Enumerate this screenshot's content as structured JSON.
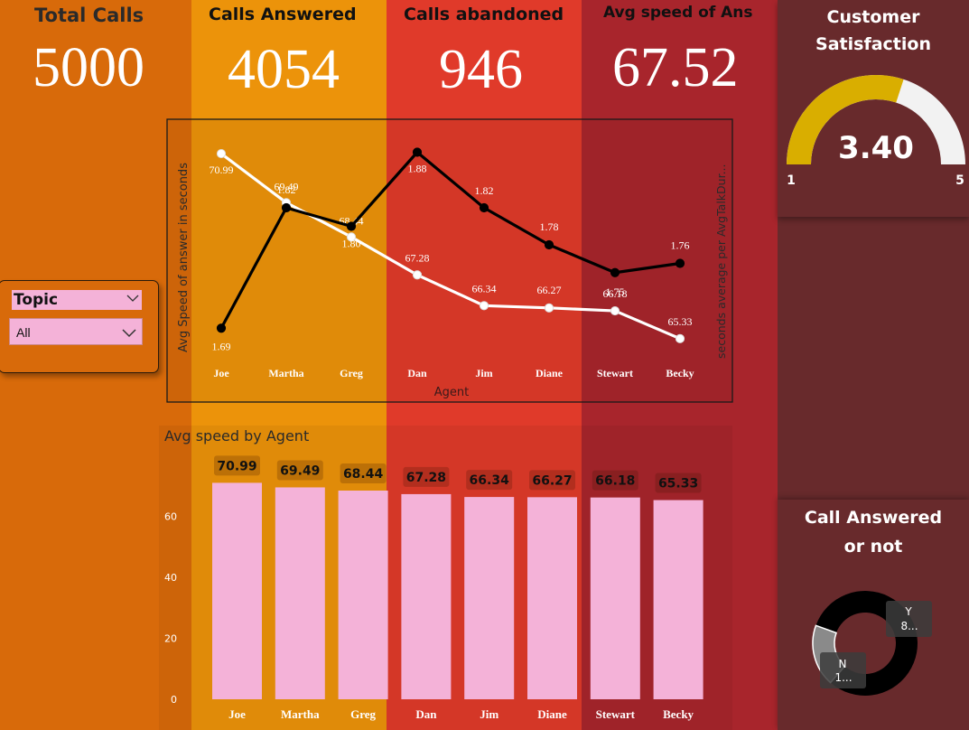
{
  "colors": {
    "col1": "#d86a0a",
    "col2": "#ec930a",
    "col3": "#e03a2a",
    "col4": "#a8252c",
    "right_panel": "#682a2c",
    "pink": "#f4b2d8",
    "gauge_fill": "#d9ae00",
    "gauge_track": "#f2f2f2"
  },
  "kpis": [
    {
      "title": "Total Calls",
      "value": "5000"
    },
    {
      "title": "Calls Answered",
      "value": "4054"
    },
    {
      "title": "Calls abandoned",
      "value": "946"
    },
    {
      "title": "Avg speed of Ans",
      "value": "67.52"
    }
  ],
  "slicer": {
    "title": "Topic",
    "selected": "All",
    "chevron_icon": "chevron-down-icon"
  },
  "satisfaction": {
    "title_line1": "Customer",
    "title_line2": "Satisfaction",
    "value": "3.40",
    "numeric": 3.4,
    "min": "1",
    "max": "5"
  },
  "call_answered": {
    "title_line1": "Call Answered",
    "title_line2": "or not",
    "y_label": "Y",
    "y_value": "8...",
    "n_label": "N",
    "n_value": "1...",
    "y_share": 0.81,
    "n_share": 0.19
  },
  "chart_data": [
    {
      "type": "line",
      "categories": [
        "Joe",
        "Martha",
        "Greg",
        "Dan",
        "Jim",
        "Diane",
        "Stewart",
        "Becky"
      ],
      "xlabel": "Agent",
      "ylabel": "Avg Speed of answer in seconds",
      "y2label": "seconds average per AvgTalkDur...",
      "series": [
        {
          "axis": "left",
          "color": "#ffffff",
          "values": [
            70.99,
            69.49,
            68.44,
            67.28,
            66.34,
            66.27,
            66.18,
            65.33
          ],
          "labels": [
            "70.99",
            "69.49",
            "68.44",
            "67.28",
            "66.34",
            "66.27",
            "66.18",
            "65.33"
          ]
        },
        {
          "axis": "right",
          "color": "#000000",
          "values": [
            1.69,
            1.82,
            1.8,
            1.88,
            1.82,
            1.78,
            1.75,
            1.76
          ],
          "labels": [
            "1.69",
            "1.82",
            "1.80",
            "1.88",
            "1.82",
            "1.78",
            "1.75",
            "1.76"
          ]
        }
      ],
      "ylim": [
        64.8,
        71.6
      ],
      "y2lim": [
        1.66,
        1.9
      ]
    },
    {
      "type": "bar",
      "title": "Avg speed by Agent",
      "categories": [
        "Joe",
        "Martha",
        "Greg",
        "Dan",
        "Jim",
        "Diane",
        "Stewart",
        "Becky"
      ],
      "values": [
        70.99,
        69.49,
        68.44,
        67.28,
        66.34,
        66.27,
        66.18,
        65.33
      ],
      "labels": [
        "70.99",
        "69.49",
        "68.44",
        "67.28",
        "66.34",
        "66.27",
        "66.18",
        "65.33"
      ],
      "yticks": [
        "0",
        "20",
        "40",
        "60"
      ],
      "ylim": [
        0,
        80
      ]
    }
  ]
}
